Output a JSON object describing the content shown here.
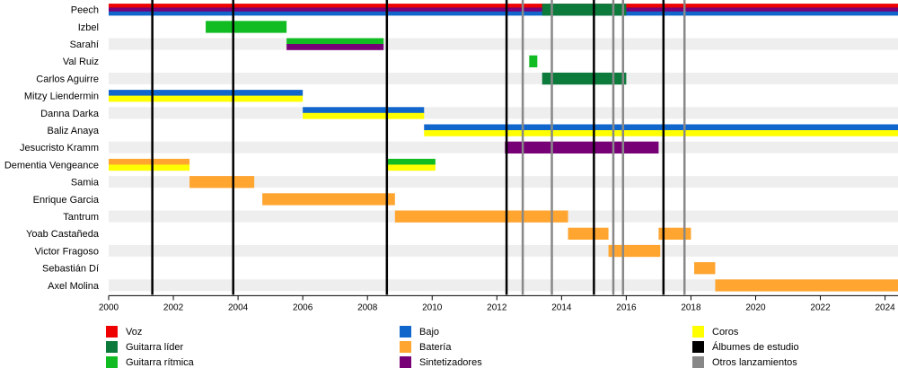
{
  "chart_data": {
    "type": "timeline",
    "x_range": [
      2000,
      2024.4
    ],
    "ticks": [
      2000,
      2002,
      2004,
      2006,
      2008,
      2010,
      2012,
      2014,
      2016,
      2018,
      2020,
      2022,
      2024
    ],
    "tick_labels": [
      "2000",
      "2002",
      "2004",
      "2006",
      "2008",
      "2010",
      "2012",
      "2014",
      "2016",
      "2018",
      "2020",
      "2022",
      "2024"
    ],
    "colors": {
      "voz": "#ee0000",
      "guitarra_lider": "#0b7a3b",
      "guitarra_ritmica": "#11bb22",
      "bajo": "#1166cc",
      "bateria": "#ffa530",
      "sintetizadores": "#770077",
      "coros": "#ffff00",
      "album": "#000000",
      "otros": "#888888"
    },
    "members": [
      {
        "name": "Peech",
        "spans": [
          {
            "start": 2000,
            "end": 2024.4,
            "roles": [
              "voz",
              "sintetizadores",
              "bajo"
            ]
          },
          {
            "start": 2013.4,
            "end": 2016,
            "roles": [
              "guitarra_lider"
            ]
          }
        ]
      },
      {
        "name": "Izbel",
        "spans": [
          {
            "start": 2003.0,
            "end": 2005.5,
            "roles": [
              "guitarra_ritmica"
            ]
          }
        ]
      },
      {
        "name": "Sarahí",
        "spans": [
          {
            "start": 2005.5,
            "end": 2008.5,
            "roles": [
              "guitarra_ritmica",
              "sintetizadores"
            ]
          }
        ]
      },
      {
        "name": "Val Ruiz",
        "spans": [
          {
            "start": 2013.0,
            "end": 2013.25,
            "roles": [
              "guitarra_ritmica"
            ]
          }
        ]
      },
      {
        "name": "Carlos Aguirre",
        "spans": [
          {
            "start": 2013.4,
            "end": 2016.0,
            "roles": [
              "guitarra_lider"
            ]
          }
        ]
      },
      {
        "name": "Mitzy Liendermin",
        "spans": [
          {
            "start": 2000.0,
            "end": 2006.0,
            "roles": [
              "bajo",
              "coros"
            ]
          }
        ]
      },
      {
        "name": "Danna Darka",
        "spans": [
          {
            "start": 2006.0,
            "end": 2009.75,
            "roles": [
              "bajo",
              "coros"
            ]
          }
        ]
      },
      {
        "name": "Baliz Anaya",
        "spans": [
          {
            "start": 2009.75,
            "end": 2024.4,
            "roles": [
              "bajo",
              "coros"
            ]
          }
        ]
      },
      {
        "name": "Jesucristo Kramm",
        "spans": [
          {
            "start": 2012.25,
            "end": 2017.0,
            "roles": [
              "sintetizadores"
            ]
          }
        ]
      },
      {
        "name": "Dementia Vengeance",
        "spans": [
          {
            "start": 2000.0,
            "end": 2002.5,
            "roles": [
              "bateria",
              "coros"
            ]
          },
          {
            "start": 2008.6,
            "end": 2010.1,
            "roles": [
              "guitarra_ritmica",
              "coros"
            ]
          }
        ]
      },
      {
        "name": "Samia",
        "spans": [
          {
            "start": 2002.5,
            "end": 2004.5,
            "roles": [
              "bateria"
            ]
          }
        ]
      },
      {
        "name": "Enrique Garcia",
        "spans": [
          {
            "start": 2004.75,
            "end": 2008.85,
            "roles": [
              "bateria"
            ]
          }
        ]
      },
      {
        "name": "Tantrum",
        "spans": [
          {
            "start": 2008.85,
            "end": 2014.2,
            "roles": [
              "bateria"
            ]
          }
        ]
      },
      {
        "name": "Yoab Castañeda",
        "spans": [
          {
            "start": 2014.2,
            "end": 2015.45,
            "roles": [
              "bateria"
            ]
          },
          {
            "start": 2017.0,
            "end": 2018.0,
            "roles": [
              "bateria"
            ]
          }
        ]
      },
      {
        "name": "Victor Fragoso",
        "spans": [
          {
            "start": 2015.45,
            "end": 2017.05,
            "roles": [
              "bateria"
            ]
          }
        ]
      },
      {
        "name": "Sebastián Dí",
        "spans": [
          {
            "start": 2018.1,
            "end": 2018.75,
            "roles": [
              "bateria"
            ]
          }
        ]
      },
      {
        "name": "Axel Molina",
        "spans": [
          {
            "start": 2018.75,
            "end": 2024.4,
            "roles": [
              "bateria"
            ]
          }
        ]
      }
    ],
    "albums": [
      2001.35,
      2003.85,
      2008.6,
      2012.3,
      2015.0,
      2017.15
    ],
    "others": [
      2012.8,
      2013.7,
      2015.6,
      2015.9,
      2017.8
    ],
    "legend": [
      {
        "key": "voz",
        "label": "Voz"
      },
      {
        "key": "guitarra_lider",
        "label": "Guitarra líder"
      },
      {
        "key": "guitarra_ritmica",
        "label": "Guitarra rítmica"
      },
      {
        "key": "bajo",
        "label": "Bajo"
      },
      {
        "key": "bateria",
        "label": "Batería"
      },
      {
        "key": "sintetizadores",
        "label": "Sintetizadores"
      },
      {
        "key": "coros",
        "label": "Coros"
      },
      {
        "key": "album",
        "label": "Álbumes de estudio"
      },
      {
        "key": "otros",
        "label": "Otros lanzamientos"
      }
    ]
  }
}
